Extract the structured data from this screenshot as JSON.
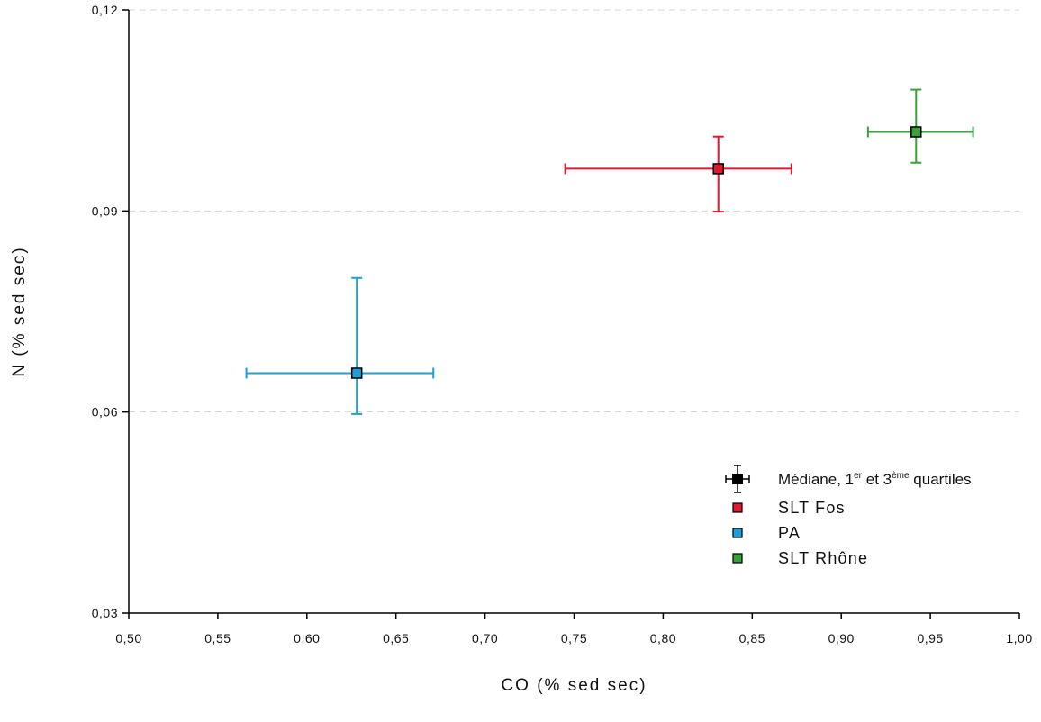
{
  "chart_data": {
    "type": "scatter",
    "xlabel": "CO (% sed sec)",
    "ylabel": "N (% sed sec)",
    "xlim": [
      0.5,
      1.0
    ],
    "ylim": [
      0.03,
      0.12
    ],
    "x_ticks": [
      "0,50",
      "0,55",
      "0,60",
      "0,65",
      "0,70",
      "0,75",
      "0,80",
      "0,85",
      "0,90",
      "0,95",
      "1,00"
    ],
    "y_ticks": [
      "0,03",
      "0,06",
      "0,09",
      "0,12"
    ],
    "grid": "horizontal dashed",
    "legend_position": "bottom-right",
    "legend_title": {
      "prefix": "Médiane, 1",
      "sup1": "er",
      "middle": " et 3",
      "sup2": "ème",
      "suffix": " quartiles"
    },
    "series": [
      {
        "name": "SLT Fos",
        "color": "#e0192c",
        "x": 0.831,
        "y": 0.0963,
        "x_q1": 0.745,
        "x_q3": 0.872,
        "y_q1": 0.0899,
        "y_q3": 0.1011
      },
      {
        "name": "PA",
        "color": "#1b9fd8",
        "x": 0.628,
        "y": 0.0658,
        "x_q1": 0.566,
        "x_q3": 0.671,
        "y_q1": 0.0597,
        "y_q3": 0.08
      },
      {
        "name": "SLT Rhône",
        "color": "#3aa13a",
        "x": 0.942,
        "y": 0.1018,
        "x_q1": 0.915,
        "x_q3": 0.974,
        "y_q1": 0.0972,
        "y_q3": 0.1081
      }
    ]
  }
}
